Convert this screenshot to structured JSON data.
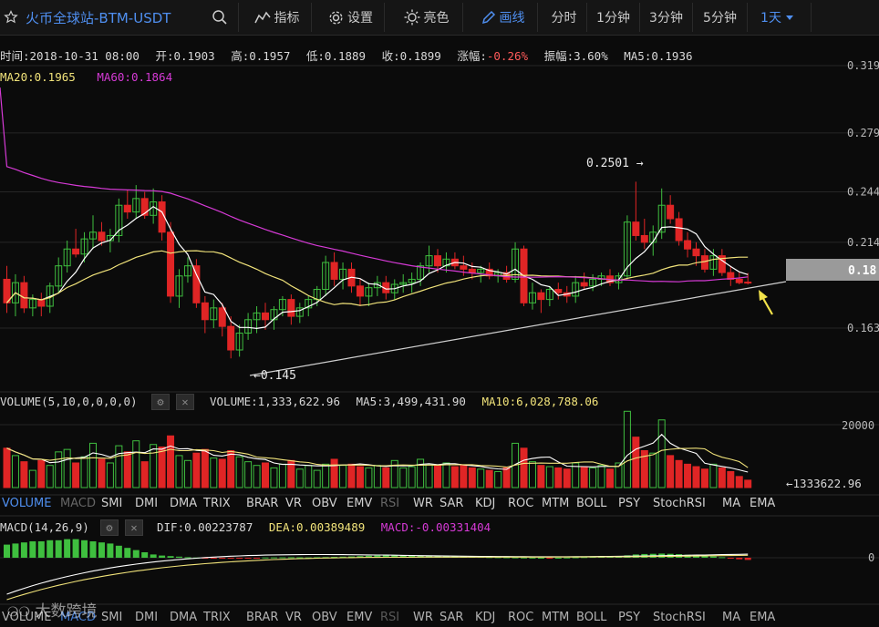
{
  "toolbar": {
    "symbol": "火币全球站-BTM-USDT",
    "indicators": "指标",
    "settings": "设置",
    "theme": "亮色",
    "draw": "画线",
    "intervals": [
      "分时",
      "1分钟",
      "3分钟",
      "5分钟",
      "1天"
    ]
  },
  "ohlc_info": {
    "time": "时间:2018-10-31 08:00",
    "open": "开:0.1903",
    "high": "高:0.1957",
    "low": "低:0.1889",
    "close": "收:0.1899",
    "change_label": "涨幅:",
    "change_value": "-0.26%",
    "amplitude": "振幅:3.60%",
    "ma5": "MA5:0.1936",
    "ma20": "MA20:0.1965",
    "ma60": "MA60:0.1864"
  },
  "volume_panel": {
    "title": "VOLUME(5,10,0,0,0,0)",
    "volume": "VOLUME:1,333,622.96",
    "ma5": "MA5:3,499,431.90",
    "ma10": "MA10:6,028,788.06",
    "last_label": "←1333622.96",
    "axis_label": "20000"
  },
  "macd_panel": {
    "title": "MACD(14,26,9)",
    "dif": "DIF:0.00223787",
    "dea": "DEA:0.00389489",
    "macd": "MACD:-0.00331404",
    "axis_label": "0"
  },
  "indicator_tabs": [
    "VOLUME",
    "MACD",
    "SMI",
    "DMI",
    "DMA",
    "TRIX",
    "BRAR",
    "VR",
    "OBV",
    "EMV",
    "RSI",
    "WR",
    "SAR",
    "KDJ",
    "ROC",
    "MTM",
    "BOLL",
    "PSY",
    "StochRSI",
    "MA",
    "EMA"
  ],
  "watermark": "大数跨境",
  "colors": {
    "up": "#3fbf3f",
    "down": "#e02525",
    "ma5": "#ffffff",
    "ma20": "#f1e37a",
    "ma60": "#d63ad6",
    "accent": "#4f8ff0"
  },
  "chart_data": {
    "type": "candlestick",
    "yaxis_ticks": [
      "0.319",
      "0.279",
      "0.244",
      "0.214",
      "0.163"
    ],
    "current_price_label": "0.18",
    "annotations": {
      "high_label": "0.2501",
      "low_label": "0.145"
    },
    "ohlc": [
      [
        0.192,
        0.2,
        0.172,
        0.178
      ],
      [
        0.178,
        0.195,
        0.17,
        0.19
      ],
      [
        0.19,
        0.194,
        0.172,
        0.175
      ],
      [
        0.175,
        0.183,
        0.17,
        0.18
      ],
      [
        0.18,
        0.184,
        0.17,
        0.176
      ],
      [
        0.176,
        0.19,
        0.172,
        0.188
      ],
      [
        0.188,
        0.205,
        0.184,
        0.2
      ],
      [
        0.2,
        0.215,
        0.196,
        0.21
      ],
      [
        0.21,
        0.222,
        0.205,
        0.207
      ],
      [
        0.207,
        0.22,
        0.202,
        0.216
      ],
      [
        0.216,
        0.23,
        0.21,
        0.22
      ],
      [
        0.22,
        0.226,
        0.212,
        0.215
      ],
      [
        0.215,
        0.222,
        0.208,
        0.218
      ],
      [
        0.218,
        0.24,
        0.214,
        0.236
      ],
      [
        0.236,
        0.245,
        0.228,
        0.232
      ],
      [
        0.232,
        0.248,
        0.228,
        0.24
      ],
      [
        0.24,
        0.244,
        0.228,
        0.23
      ],
      [
        0.23,
        0.246,
        0.225,
        0.238
      ],
      [
        0.238,
        0.242,
        0.215,
        0.22
      ],
      [
        0.22,
        0.226,
        0.178,
        0.182
      ],
      [
        0.182,
        0.198,
        0.175,
        0.194
      ],
      [
        0.194,
        0.205,
        0.19,
        0.2
      ],
      [
        0.2,
        0.204,
        0.175,
        0.178
      ],
      [
        0.178,
        0.182,
        0.16,
        0.168
      ],
      [
        0.168,
        0.18,
        0.163,
        0.175
      ],
      [
        0.175,
        0.178,
        0.158,
        0.164
      ],
      [
        0.164,
        0.17,
        0.145,
        0.15
      ],
      [
        0.15,
        0.165,
        0.146,
        0.16
      ],
      [
        0.16,
        0.172,
        0.156,
        0.168
      ],
      [
        0.168,
        0.176,
        0.16,
        0.172
      ],
      [
        0.172,
        0.178,
        0.162,
        0.168
      ],
      [
        0.168,
        0.176,
        0.162,
        0.174
      ],
      [
        0.174,
        0.182,
        0.17,
        0.18
      ],
      [
        0.18,
        0.183,
        0.165,
        0.17
      ],
      [
        0.17,
        0.178,
        0.166,
        0.175
      ],
      [
        0.175,
        0.182,
        0.17,
        0.18
      ],
      [
        0.18,
        0.188,
        0.176,
        0.186
      ],
      [
        0.186,
        0.206,
        0.182,
        0.202
      ],
      [
        0.202,
        0.208,
        0.188,
        0.192
      ],
      [
        0.192,
        0.202,
        0.186,
        0.198
      ],
      [
        0.198,
        0.202,
        0.184,
        0.188
      ],
      [
        0.188,
        0.192,
        0.176,
        0.182
      ],
      [
        0.182,
        0.19,
        0.176,
        0.187
      ],
      [
        0.187,
        0.194,
        0.182,
        0.19
      ],
      [
        0.19,
        0.194,
        0.18,
        0.184
      ],
      [
        0.184,
        0.192,
        0.18,
        0.189
      ],
      [
        0.189,
        0.195,
        0.184,
        0.19
      ],
      [
        0.19,
        0.196,
        0.184,
        0.192
      ],
      [
        0.192,
        0.202,
        0.188,
        0.2
      ],
      [
        0.2,
        0.212,
        0.196,
        0.206
      ],
      [
        0.206,
        0.21,
        0.196,
        0.2
      ],
      [
        0.2,
        0.208,
        0.196,
        0.204
      ],
      [
        0.204,
        0.208,
        0.198,
        0.2
      ],
      [
        0.2,
        0.206,
        0.194,
        0.198
      ],
      [
        0.198,
        0.202,
        0.192,
        0.196
      ],
      [
        0.196,
        0.2,
        0.19,
        0.198
      ],
      [
        0.198,
        0.202,
        0.192,
        0.194
      ],
      [
        0.194,
        0.198,
        0.19,
        0.196
      ],
      [
        0.196,
        0.2,
        0.19,
        0.192
      ],
      [
        0.192,
        0.214,
        0.19,
        0.21
      ],
      [
        0.21,
        0.212,
        0.176,
        0.178
      ],
      [
        0.178,
        0.19,
        0.174,
        0.184
      ],
      [
        0.184,
        0.186,
        0.172,
        0.18
      ],
      [
        0.18,
        0.188,
        0.176,
        0.186
      ],
      [
        0.186,
        0.19,
        0.18,
        0.184
      ],
      [
        0.184,
        0.188,
        0.178,
        0.182
      ],
      [
        0.182,
        0.194,
        0.178,
        0.19
      ],
      [
        0.19,
        0.196,
        0.186,
        0.188
      ],
      [
        0.188,
        0.195,
        0.185,
        0.192
      ],
      [
        0.192,
        0.196,
        0.188,
        0.194
      ],
      [
        0.194,
        0.198,
        0.188,
        0.19
      ],
      [
        0.19,
        0.196,
        0.186,
        0.194
      ],
      [
        0.194,
        0.23,
        0.192,
        0.226
      ],
      [
        0.226,
        0.25,
        0.215,
        0.218
      ],
      [
        0.218,
        0.228,
        0.21,
        0.214
      ],
      [
        0.214,
        0.224,
        0.206,
        0.22
      ],
      [
        0.22,
        0.246,
        0.216,
        0.236
      ],
      [
        0.236,
        0.242,
        0.225,
        0.228
      ],
      [
        0.228,
        0.232,
        0.212,
        0.215
      ],
      [
        0.215,
        0.22,
        0.205,
        0.21
      ],
      [
        0.21,
        0.214,
        0.2,
        0.206
      ],
      [
        0.206,
        0.21,
        0.196,
        0.198
      ],
      [
        0.198,
        0.21,
        0.194,
        0.206
      ],
      [
        0.206,
        0.21,
        0.194,
        0.196
      ],
      [
        0.196,
        0.2,
        0.188,
        0.192
      ],
      [
        0.192,
        0.196,
        0.189,
        0.19
      ],
      [
        0.1903,
        0.1957,
        0.1889,
        0.1899
      ]
    ],
    "volume": [
      3.2,
      2.6,
      2.1,
      1.4,
      2.2,
      1.8,
      2.9,
      3.1,
      2.0,
      2.5,
      3.6,
      2.3,
      2.0,
      3.4,
      2.9,
      3.8,
      2.1,
      3.5,
      3.3,
      4.2,
      2.6,
      2.2,
      2.8,
      3.1,
      2.4,
      2.3,
      3.0,
      2.5,
      2.1,
      1.8,
      2.0,
      1.6,
      1.9,
      2.2,
      1.5,
      1.8,
      1.4,
      1.9,
      2.3,
      1.8,
      1.9,
      1.7,
      1.6,
      1.8,
      1.6,
      2.2,
      1.6,
      1.7,
      2.3,
      1.9,
      1.8,
      2.0,
      1.7,
      1.8,
      1.6,
      1.5,
      1.4,
      1.3,
      1.6,
      3.6,
      3.2,
      2.1,
      1.8,
      1.7,
      1.6,
      1.5,
      2.0,
      1.7,
      1.6,
      1.8,
      1.5,
      2.0,
      6.2,
      4.1,
      3.0,
      2.8,
      5.5,
      2.6,
      2.2,
      1.9,
      1.7,
      1.5,
      1.9,
      1.6,
      1.3,
      0.9,
      0.6
    ],
    "macd_hist": [
      1.2,
      1.3,
      1.4,
      1.5,
      1.5,
      1.6,
      1.6,
      1.7,
      1.7,
      1.6,
      1.5,
      1.4,
      1.3,
      1.1,
      0.9,
      0.7,
      0.5,
      0.3,
      0.2,
      0.15,
      0.1,
      0.05,
      0.02,
      -0.02,
      -0.04,
      -0.05,
      -0.05,
      -0.04,
      -0.03,
      -0.02,
      0.02,
      0.03,
      0.04,
      0.05,
      0.04,
      0.03,
      0.05,
      0.06,
      0.08,
      0.1,
      0.12,
      0.15,
      0.18,
      0.2,
      0.22,
      0.25,
      0.24,
      0.22,
      0.2,
      0.18,
      0.16,
      0.15,
      0.14,
      0.12,
      0.1,
      0.08,
      0.06,
      0.05,
      0.04,
      0.03,
      0.02,
      0.01,
      0.0,
      -0.01,
      0.0,
      0.02,
      0.04,
      0.06,
      0.08,
      0.1,
      0.12,
      0.15,
      0.22,
      0.3,
      0.34,
      0.36,
      0.38,
      0.36,
      0.33,
      0.28,
      0.24,
      0.18,
      0.12,
      0.05,
      -0.08,
      -0.14,
      -0.2
    ]
  }
}
